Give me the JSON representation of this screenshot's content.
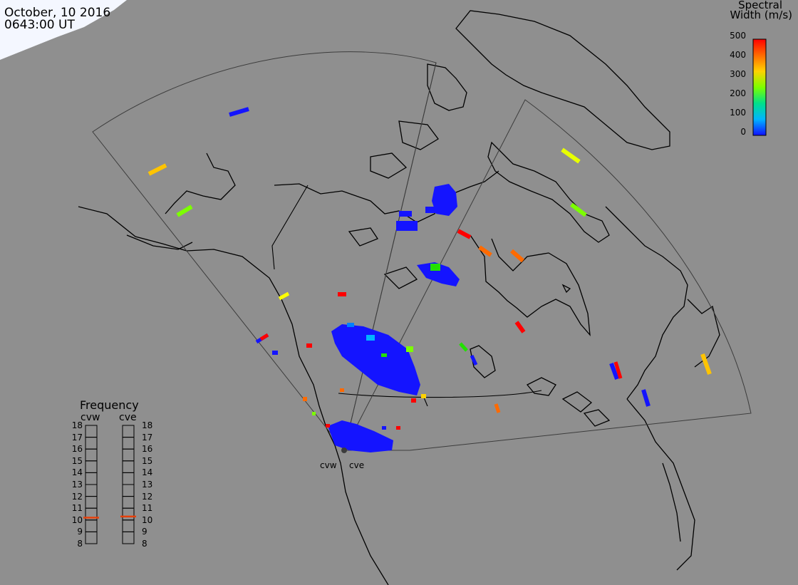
{
  "header": {
    "date": "October, 10 2016",
    "time": "0643:00 UT"
  },
  "colorbar": {
    "title_line1": "Spectral",
    "title_line2": "Width (m/s)",
    "ticks": [
      "500",
      "400",
      "300",
      "200",
      "100",
      "0"
    ],
    "colors": [
      "#ff0000",
      "#ff6a00",
      "#ffd200",
      "#7cff00",
      "#00e08a",
      "#00b4ff",
      "#1010ff"
    ]
  },
  "frequency_panel": {
    "title": "Frequency",
    "radar_a": "cvw",
    "radar_b": "cve",
    "levels": [
      "18",
      "17",
      "16",
      "15",
      "14",
      "13",
      "12",
      "11",
      "10",
      "9",
      "8"
    ],
    "cvw_freq_mhz": 10.7,
    "cve_freq_mhz": 10.8,
    "marker_color": "#e8400a"
  },
  "radar_sites": {
    "west": "cvw",
    "east": "cve"
  },
  "map": {
    "background": "#8f8f8f",
    "coast_color": "#000000",
    "fov_color": "#3c3c3c",
    "daylight_color": "#f2f6ff",
    "scatter_primary": "#1414ff"
  }
}
